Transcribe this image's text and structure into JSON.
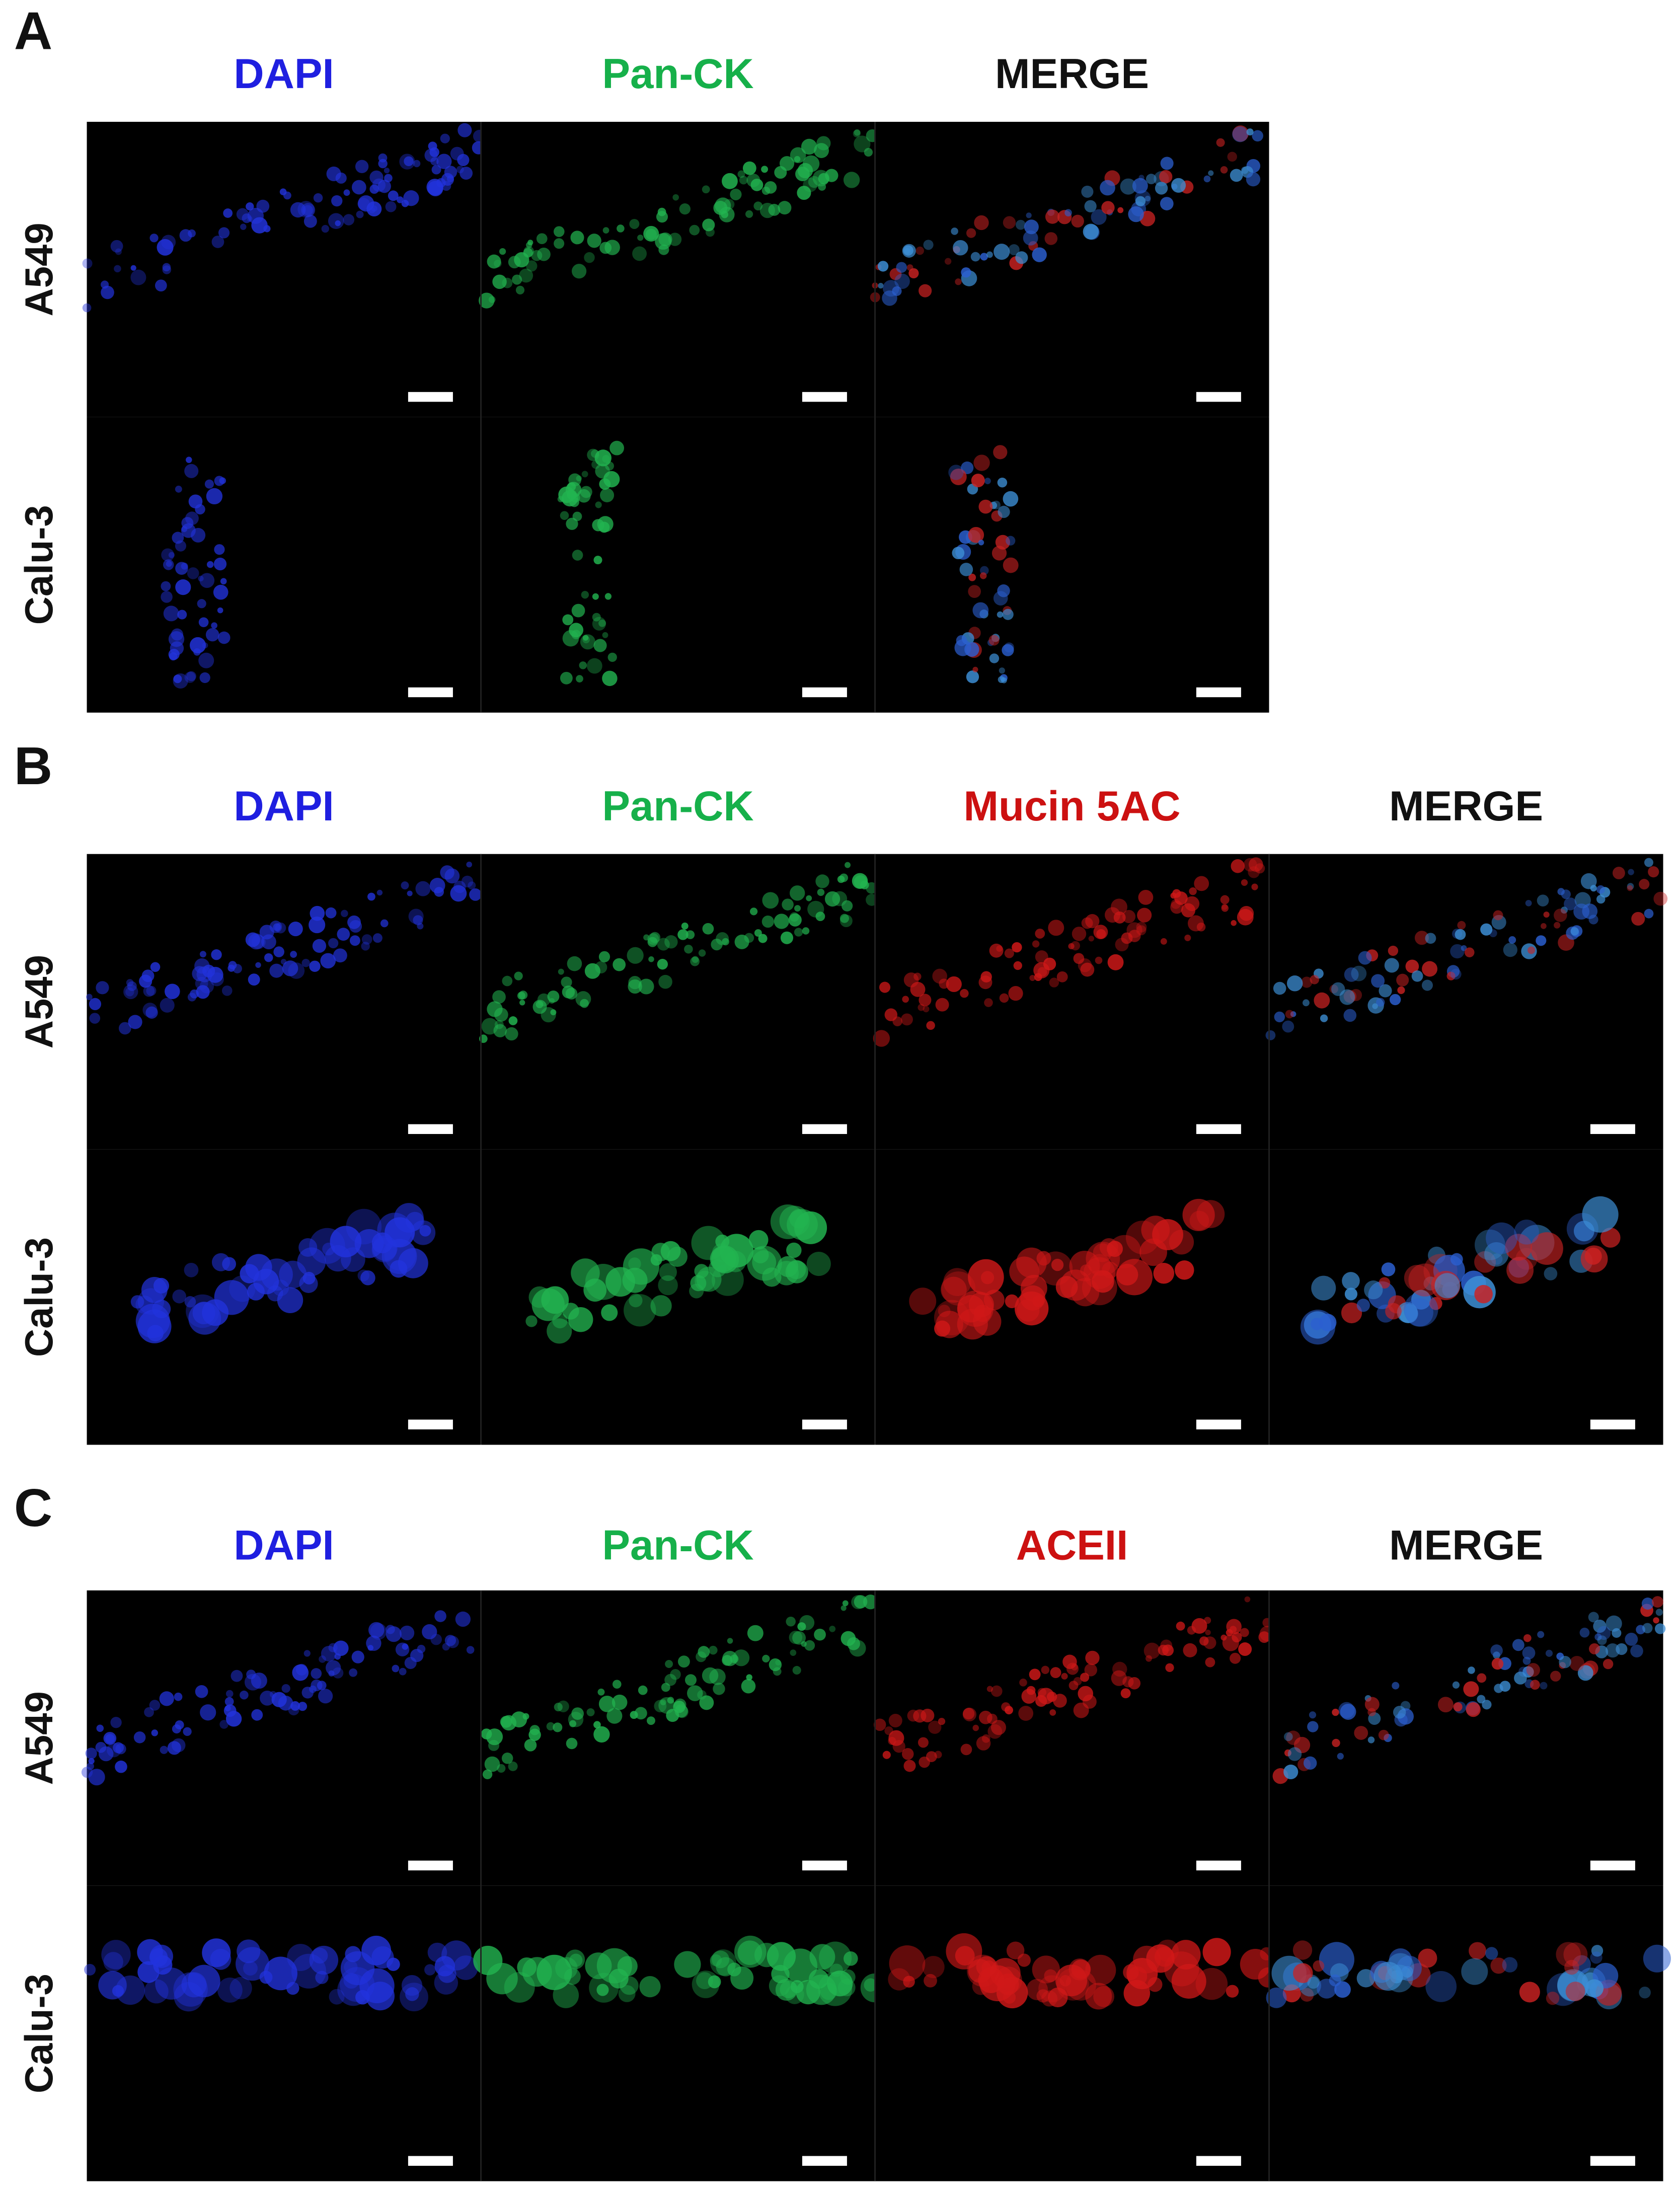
{
  "panels": [
    {
      "label": "A",
      "columns": [
        {
          "name": "DAPI",
          "color": "#1f1fe0"
        },
        {
          "name": "Pan-CK",
          "color": "#16b04a"
        },
        {
          "name": "MERGE",
          "color": "#111111"
        }
      ],
      "rows": [
        "A549",
        "Calu-3"
      ]
    },
    {
      "label": "B",
      "columns": [
        {
          "name": "DAPI",
          "color": "#1f1fe0"
        },
        {
          "name": "Pan-CK",
          "color": "#16b04a"
        },
        {
          "name": "Mucin 5AC",
          "color": "#cc1111"
        },
        {
          "name": "MERGE",
          "color": "#111111"
        }
      ],
      "rows": [
        "A549",
        "Calu-3"
      ]
    },
    {
      "label": "C",
      "columns": [
        {
          "name": "DAPI",
          "color": "#1f1fe0"
        },
        {
          "name": "Pan-CK",
          "color": "#16b04a"
        },
        {
          "name": "ACEII",
          "color": "#cc1111"
        },
        {
          "name": "MERGE",
          "color": "#111111"
        }
      ],
      "rows": [
        "A549",
        "Calu-3"
      ]
    }
  ]
}
